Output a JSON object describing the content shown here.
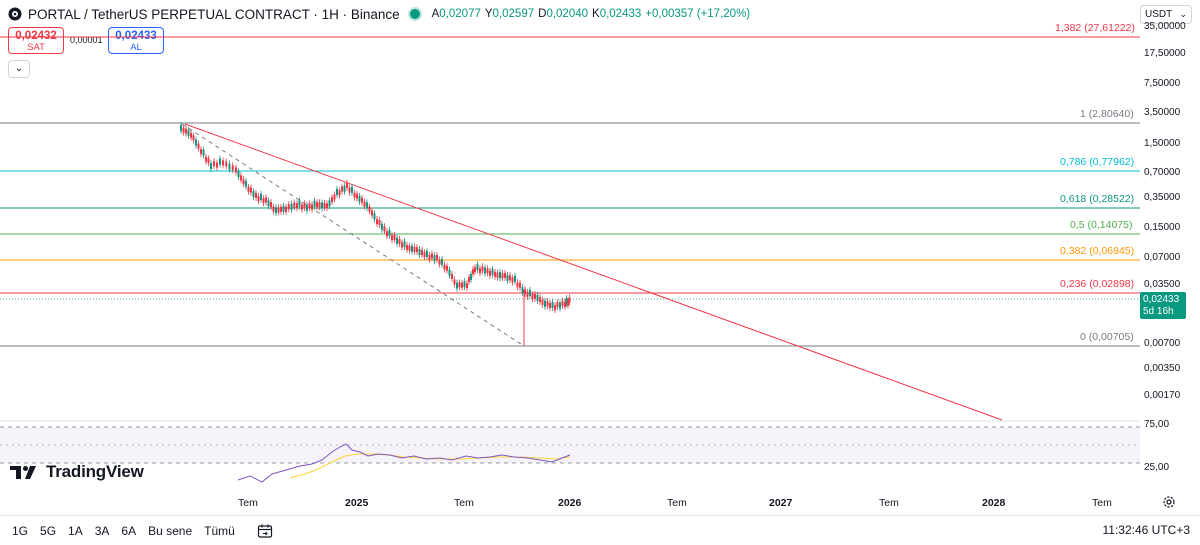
{
  "header": {
    "title": "PORTAL / TetherUS PERPETUAL CONTRACT · 1H · Binance",
    "ohlc": [
      {
        "k": "A",
        "v": "0,02077"
      },
      {
        "k": "Y",
        "v": "0,02597"
      },
      {
        "k": "D",
        "v": "0,02040"
      },
      {
        "k": "K",
        "v": "0,02433"
      }
    ],
    "change": "+0,00357 (+17,20%)"
  },
  "trade": {
    "sell_price": "0,02432",
    "sell_label": "SAT",
    "spread": "0,00001",
    "buy_price": "0,02433",
    "buy_label": "AL"
  },
  "price_axis": {
    "currency": "USDT",
    "ticks": [
      "35,00000",
      "17,50000",
      "7,50000",
      "3,50000",
      "1,50000",
      "0,70000",
      "0,35000",
      "0,15000",
      "0,07000",
      "0,03500",
      "0,00700",
      "0,00350",
      "0,00170"
    ],
    "last_price": "0,02433",
    "countdown": "5d 16h"
  },
  "rsi_axis": {
    "ticks": [
      "75,00",
      "25,00"
    ]
  },
  "time_axis": {
    "ticks": [
      {
        "label": "Tem",
        "bold": false
      },
      {
        "label": "2025",
        "bold": true
      },
      {
        "label": "Tem",
        "bold": false
      },
      {
        "label": "2026",
        "bold": true
      },
      {
        "label": "Tem",
        "bold": false
      },
      {
        "label": "2027",
        "bold": true
      },
      {
        "label": "Tem",
        "bold": false
      },
      {
        "label": "2028",
        "bold": true
      },
      {
        "label": "Tem",
        "bold": false
      }
    ]
  },
  "fib_levels": [
    {
      "label": "1,382 (27,61222)",
      "color": "#f23645"
    },
    {
      "label": "1 (2,80640)",
      "color": "#787b86"
    },
    {
      "label": "0,786 (0,77962)",
      "color": "#00bcd4"
    },
    {
      "label": "0,618 (0,28522)",
      "color": "#089981"
    },
    {
      "label": "0,5 (0,14075)",
      "color": "#4caf50"
    },
    {
      "label": "0,382 (0,06945)",
      "color": "#ff9800"
    },
    {
      "label": "0,236 (0,02898)",
      "color": "#f23645"
    },
    {
      "label": "0 (0,00705)",
      "color": "#787b86"
    }
  ],
  "ranges": [
    "1G",
    "5G",
    "1A",
    "3A",
    "6A",
    "Bu sene",
    "Tümü"
  ],
  "clock": "11:32:46 UTC+3",
  "logo_text": "TradingView",
  "colors": {
    "up": "#089981",
    "down": "#f23645",
    "trendline": "#f23645",
    "rsi": "#7e57c2",
    "rsi_ma": "#fdd835"
  }
}
